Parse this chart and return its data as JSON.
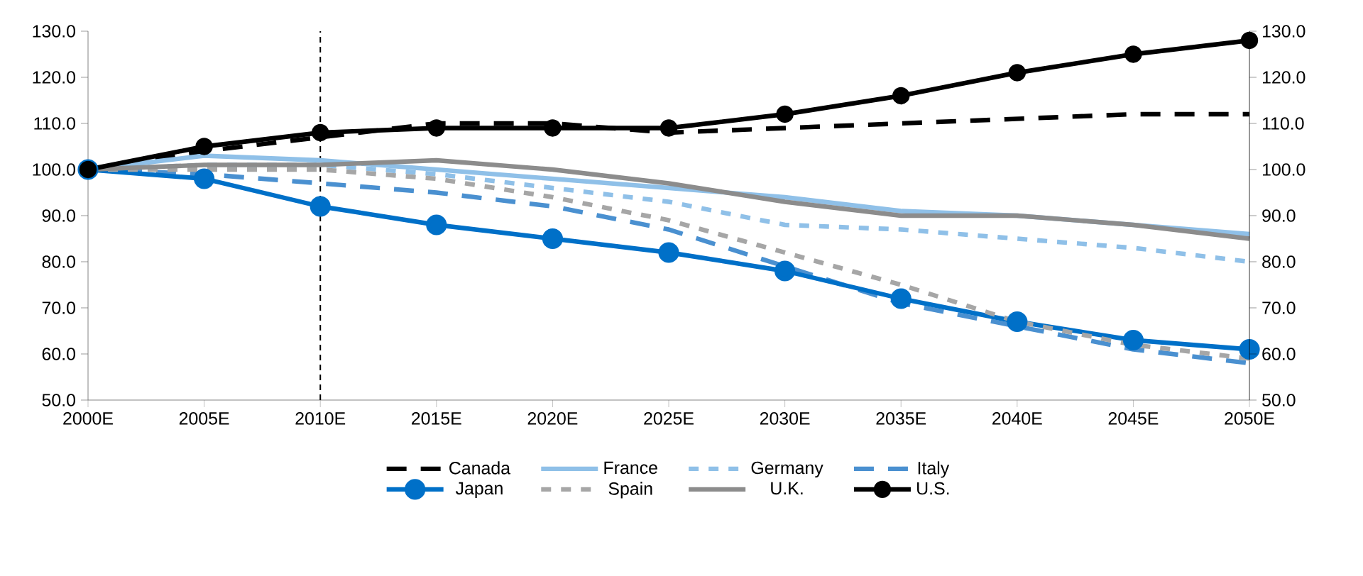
{
  "chart_data": {
    "type": "line",
    "categories": [
      "2000E",
      "2005E",
      "2010E",
      "2015E",
      "2020E",
      "2025E",
      "2030E",
      "2035E",
      "2040E",
      "2045E",
      "2050E"
    ],
    "series": [
      {
        "name": "Canada",
        "color": "#000000",
        "line_style": "dashed",
        "marker": "none",
        "values": [
          100,
          104,
          107,
          110,
          110,
          108,
          109,
          110,
          111,
          112,
          112
        ]
      },
      {
        "name": "France",
        "color": "#8fc0e8",
        "line_style": "solid",
        "marker": "none",
        "values": [
          100,
          103,
          102,
          100,
          98,
          96,
          94,
          91,
          90,
          88,
          86
        ]
      },
      {
        "name": "Germany",
        "color": "#8fc0e8",
        "line_style": "dotted",
        "marker": "none",
        "values": [
          100,
          101,
          101,
          99,
          96,
          93,
          88,
          87,
          85,
          83,
          80
        ]
      },
      {
        "name": "Italy",
        "color": "#4a90d0",
        "line_style": "dashed",
        "marker": "none",
        "values": [
          100,
          99,
          97,
          95,
          92,
          87,
          79,
          71,
          66,
          61,
          58
        ]
      },
      {
        "name": "Japan",
        "color": "#0070c8",
        "line_style": "solid",
        "marker": "circle",
        "values": [
          100,
          98,
          92,
          88,
          85,
          82,
          78,
          72,
          67,
          63,
          61
        ]
      },
      {
        "name": "Spain",
        "color": "#a6a6a6",
        "line_style": "dotted",
        "marker": "none",
        "values": [
          100,
          100,
          100,
          98,
          94,
          89,
          82,
          75,
          67,
          62,
          59
        ]
      },
      {
        "name": "U.K.",
        "color": "#8c8c8c",
        "line_style": "solid",
        "marker": "none",
        "values": [
          100,
          101,
          101,
          102,
          100,
          97,
          93,
          90,
          90,
          88,
          85
        ]
      },
      {
        "name": "U.S.",
        "color": "#000000",
        "line_style": "solid",
        "marker": "circle",
        "values": [
          100,
          105,
          108,
          109,
          109,
          109,
          112,
          116,
          121,
          125,
          128
        ]
      }
    ],
    "ylim": [
      50,
      130
    ],
    "yticks": [
      {
        "value": 50,
        "label": "50.0"
      },
      {
        "value": 60,
        "label": "60.0"
      },
      {
        "value": 70,
        "label": "70.0"
      },
      {
        "value": 80,
        "label": "80.0"
      },
      {
        "value": 90,
        "label": "90.0"
      },
      {
        "value": 100,
        "label": "100.0"
      },
      {
        "value": 110,
        "label": "110.0"
      },
      {
        "value": 120,
        "label": "120.0"
      },
      {
        "value": 130,
        "label": "130.0"
      }
    ],
    "y2lim": [
      50,
      130
    ],
    "y2ticks": [
      {
        "value": 50,
        "label": "50.0"
      },
      {
        "value": 60,
        "label": "60.0"
      },
      {
        "value": 70,
        "label": "70.0"
      },
      {
        "value": 80,
        "label": "80.0"
      },
      {
        "value": 90,
        "label": "90.0"
      },
      {
        "value": 100,
        "label": "100.0"
      },
      {
        "value": 110,
        "label": "110.0"
      },
      {
        "value": 120,
        "label": "120.0"
      },
      {
        "value": 130,
        "label": "130.0"
      }
    ],
    "ref_lines": [
      {
        "axis": "x",
        "value": "2010E",
        "color": "#000000",
        "line_style": "dashed"
      }
    ],
    "grid": false,
    "legend": "bottom"
  }
}
